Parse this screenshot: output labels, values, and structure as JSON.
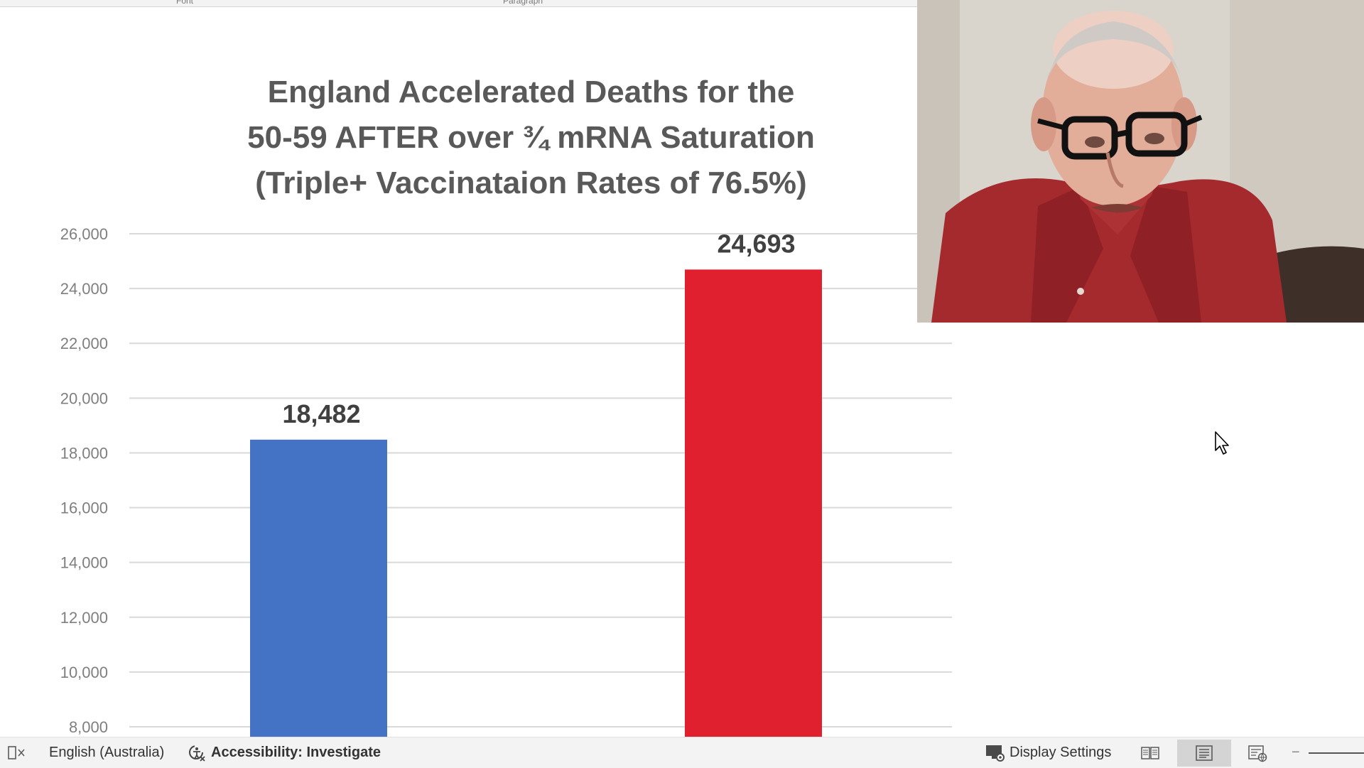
{
  "ribbon": {
    "groups": [
      "Font",
      "Paragraph"
    ]
  },
  "chart_data": {
    "type": "bar",
    "title_lines": [
      "England Accelerated Deaths for the",
      "50-59 AFTER over ¾ mRNA Saturation",
      "(Triple+ Vaccinataion Rates of 76.5%)"
    ],
    "categories": [
      "",
      ""
    ],
    "values": [
      18482,
      24693
    ],
    "value_labels": [
      "18,482",
      "24,693"
    ],
    "bar_colors": [
      "#4472c4",
      "#e0202f"
    ],
    "y_ticks": [
      "8,000",
      "10,000",
      "12,000",
      "14,000",
      "16,000",
      "18,000",
      "20,000",
      "22,000",
      "24,000",
      "26,000"
    ],
    "y_tick_values": [
      8000,
      10000,
      12000,
      14000,
      16000,
      18000,
      20000,
      22000,
      24000,
      26000
    ],
    "ylim": [
      7000,
      26000
    ],
    "grid": true,
    "legend": "none",
    "xlabel": "",
    "ylabel": ""
  },
  "webcam": {
    "description_icon": "presenter-video"
  },
  "status_bar": {
    "language": "English (Australia)",
    "accessibility": "Accessibility: Investigate",
    "display_settings": "Display Settings",
    "zoom_minus": "−"
  },
  "colors": {
    "status_bar_bg": "#f3f3f3",
    "title_text": "#595959",
    "grid_line": "#d9d9d9",
    "tick_text": "#7f7f7f"
  }
}
